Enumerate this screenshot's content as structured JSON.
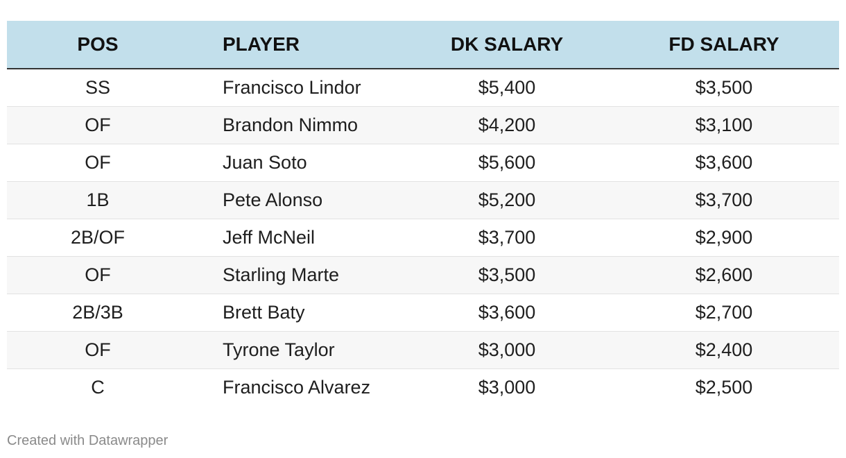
{
  "chart_data": {
    "type": "table",
    "columns": [
      "POS",
      "PLAYER",
      "DK SALARY",
      "FD SALARY"
    ],
    "rows": [
      [
        "SS",
        "Francisco Lindor",
        "$5,400",
        "$3,500"
      ],
      [
        "OF",
        "Brandon Nimmo",
        "$4,200",
        "$3,100"
      ],
      [
        "OF",
        "Juan Soto",
        "$5,600",
        "$3,600"
      ],
      [
        "1B",
        "Pete Alonso",
        "$5,200",
        "$3,700"
      ],
      [
        "2B/OF",
        "Jeff McNeil",
        "$3,700",
        "$2,900"
      ],
      [
        "OF",
        "Starling Marte",
        "$3,500",
        "$2,600"
      ],
      [
        "2B/3B",
        "Brett Baty",
        "$3,600",
        "$2,700"
      ],
      [
        "OF",
        "Tyrone Taylor",
        "$3,000",
        "$2,400"
      ],
      [
        "C",
        "Francisco Alvarez",
        "$3,000",
        "$2,500"
      ]
    ]
  },
  "footer": {
    "credit": "Created with Datawrapper"
  },
  "colors": {
    "header_bg": "#c2dfeb",
    "stripe_bg": "#f7f7f7",
    "header_rule": "#333333"
  }
}
